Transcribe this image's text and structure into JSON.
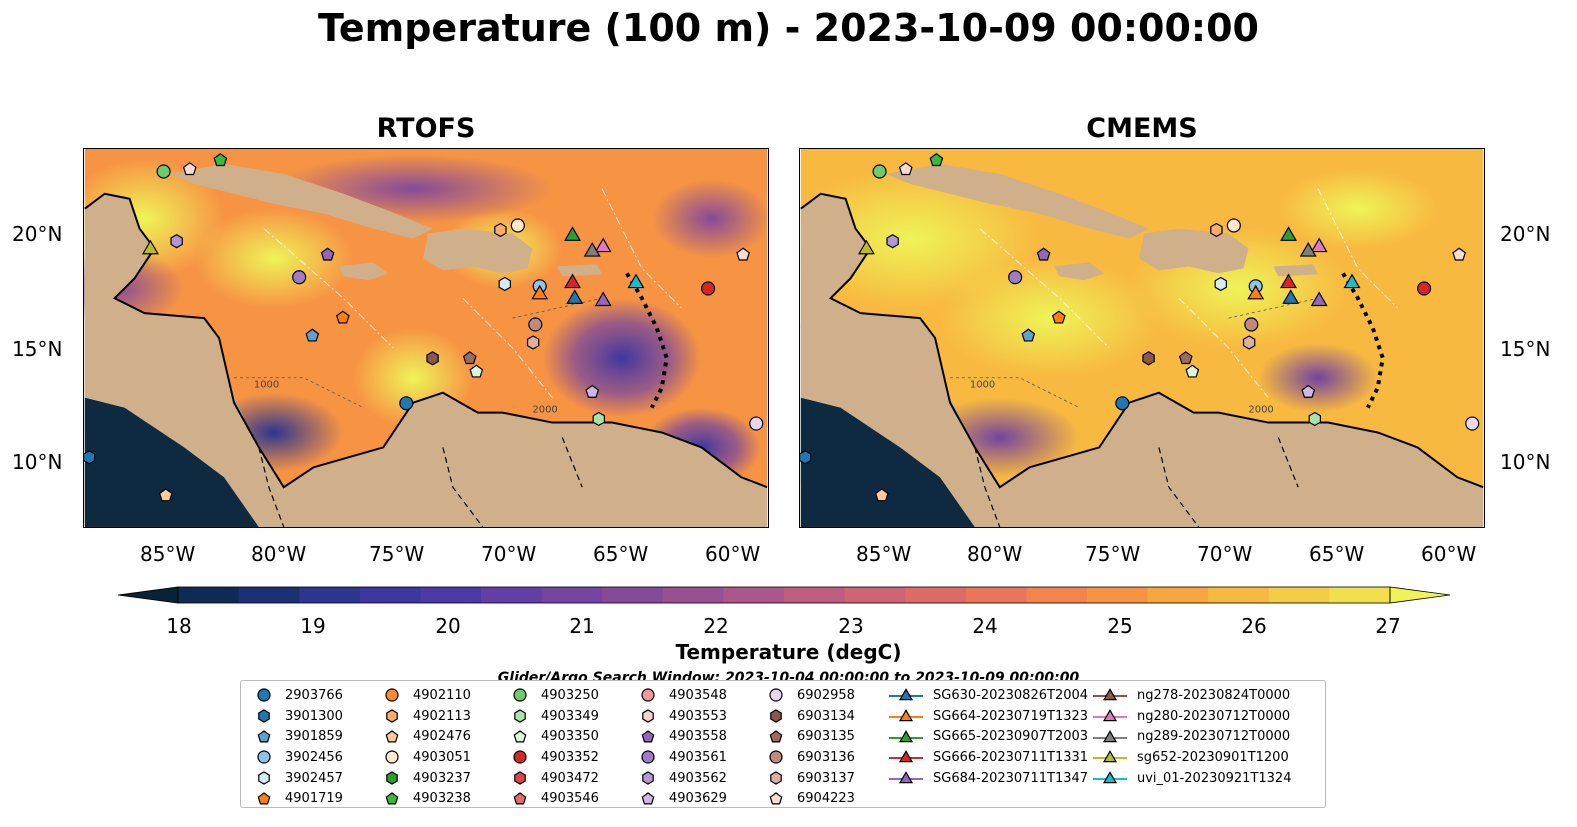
{
  "title": "Temperature (100 m) - 2023-10-09 00:00:00",
  "panels": [
    {
      "name": "RTOFS"
    },
    {
      "name": "CMEMS"
    }
  ],
  "axes": {
    "lon_ticks": [
      "85°W",
      "80°W",
      "75°W",
      "70°W",
      "65°W",
      "60°W"
    ],
    "lat_ticks": [
      "20°N",
      "15°N",
      "10°N"
    ]
  },
  "contour_labels": [
    "1000",
    "2000",
    "1000",
    "2000"
  ],
  "colorbar": {
    "label": "Temperature (degC)",
    "ticks": [
      "18",
      "19",
      "20",
      "21",
      "22",
      "23",
      "24",
      "25",
      "26",
      "27"
    ],
    "min": 18,
    "max": 27,
    "step": 0.5,
    "colors": [
      "#082236",
      "#0f2a55",
      "#1b2f73",
      "#2c3590",
      "#3d379f",
      "#4e3aa6",
      "#613fa5",
      "#7344a0",
      "#854a9a",
      "#985093",
      "#ab578b",
      "#be5d80",
      "#cf6474",
      "#de6c66",
      "#ea7659",
      "#f3844d",
      "#f79444",
      "#f9a640",
      "#f8b940",
      "#f5cc45",
      "#f1df4d",
      "#eef458"
    ]
  },
  "search_window": "Glider/Argo Search Window: 2023-10-04 00:00:00 to 2023-10-09 00:00:00",
  "legend": {
    "columns": [
      [
        {
          "label": "2903766",
          "marker": "circle",
          "color": "#1f77b4"
        },
        {
          "label": "3901300",
          "marker": "hexagon",
          "color": "#1f77b4"
        },
        {
          "label": "3901859",
          "marker": "pentagon",
          "color": "#5fa2ce"
        },
        {
          "label": "3902456",
          "marker": "circle",
          "color": "#8fc3e8"
        },
        {
          "label": "3902457",
          "marker": "hexagon",
          "color": "#d4ecf8"
        },
        {
          "label": "4901719",
          "marker": "pentagon",
          "color": "#ff7f0e"
        }
      ],
      [
        {
          "label": "4902110",
          "marker": "circle",
          "color": "#ff8c26"
        },
        {
          "label": "4902113",
          "marker": "hexagon",
          "color": "#ffad66"
        },
        {
          "label": "4902476",
          "marker": "pentagon",
          "color": "#ffcb99"
        },
        {
          "label": "4903051",
          "marker": "circle",
          "color": "#ffe8cc"
        },
        {
          "label": "4903237",
          "marker": "hexagon",
          "color": "#2ca02c"
        },
        {
          "label": "4903238",
          "marker": "pentagon",
          "color": "#3cb83c"
        }
      ],
      [
        {
          "label": "4903250",
          "marker": "circle",
          "color": "#6ccc6c"
        },
        {
          "label": "4903349",
          "marker": "hexagon",
          "color": "#a8e4a8"
        },
        {
          "label": "4903350",
          "marker": "pentagon",
          "color": "#dcf8dc"
        },
        {
          "label": "4903352",
          "marker": "circle",
          "color": "#d62728"
        },
        {
          "label": "4903472",
          "marker": "hexagon",
          "color": "#e04646"
        },
        {
          "label": "4903546",
          "marker": "pentagon",
          "color": "#ea6a6a"
        }
      ],
      [
        {
          "label": "4903548",
          "marker": "circle",
          "color": "#f29a9a"
        },
        {
          "label": "4903553",
          "marker": "hexagon",
          "color": "#fad0d0"
        },
        {
          "label": "4903558",
          "marker": "pentagon",
          "color": "#9467bd"
        },
        {
          "label": "4903561",
          "marker": "circle",
          "color": "#a07cc6"
        },
        {
          "label": "4903562",
          "marker": "hexagon",
          "color": "#b596d4"
        },
        {
          "label": "4903629",
          "marker": "pentagon",
          "color": "#ceb8e4"
        }
      ],
      [
        {
          "label": "6902958",
          "marker": "circle",
          "color": "#e7d6f4"
        },
        {
          "label": "6903134",
          "marker": "hexagon",
          "color": "#8c564b"
        },
        {
          "label": "6903135",
          "marker": "pentagon",
          "color": "#9e6a5e"
        },
        {
          "label": "6903136",
          "marker": "circle",
          "color": "#c08a7c"
        },
        {
          "label": "6903137",
          "marker": "hexagon",
          "color": "#ddb0a4"
        },
        {
          "label": "6904223",
          "marker": "pentagon",
          "color": "#f6dcd4"
        }
      ],
      [
        {
          "label": "SG630-20230826T2004",
          "marker": "triangle",
          "color": "#1f77b4"
        },
        {
          "label": "SG664-20230719T1323",
          "marker": "triangle",
          "color": "#ff7f0e"
        },
        {
          "label": "SG665-20230907T2003",
          "marker": "triangle",
          "color": "#2ca02c"
        },
        {
          "label": "SG666-20230711T1331",
          "marker": "triangle",
          "color": "#d62728"
        },
        {
          "label": "SG684-20230711T1347",
          "marker": "triangle",
          "color": "#9467bd"
        }
      ],
      [
        {
          "label": "ng278-20230824T0000",
          "marker": "triangle",
          "color": "#8c564b"
        },
        {
          "label": "ng280-20230712T0000",
          "marker": "triangle",
          "color": "#e377c2"
        },
        {
          "label": "ng289-20230712T0000",
          "marker": "triangle",
          "color": "#7f7f7f"
        },
        {
          "label": "sg652-20230901T1200",
          "marker": "triangle",
          "color": "#bcbd22"
        },
        {
          "label": "uvi_01-20230921T1324",
          "marker": "triangle",
          "color": "#17becf"
        }
      ]
    ]
  },
  "platforms": [
    {
      "id": "2903766",
      "lon": -74.5,
      "lat": 12.5
    },
    {
      "id": "3901300",
      "lon": -89.0,
      "lat": 10.1
    },
    {
      "id": "3901859",
      "lon": -78.8,
      "lat": 15.5
    },
    {
      "id": "3902456",
      "lon": -68.4,
      "lat": 17.7
    },
    {
      "id": "3902457",
      "lon": -70.0,
      "lat": 17.8
    },
    {
      "id": "4901719",
      "lon": -77.4,
      "lat": 16.3
    },
    {
      "id": "4902476",
      "lon": -85.5,
      "lat": 8.4
    },
    {
      "id": "4903051",
      "lon": -69.4,
      "lat": 20.4
    },
    {
      "id": "4903238",
      "lon": -83.0,
      "lat": 23.3
    },
    {
      "id": "4903250",
      "lon": -85.6,
      "lat": 22.8
    },
    {
      "id": "4903349",
      "lon": -65.7,
      "lat": 11.8
    },
    {
      "id": "4903350",
      "lon": -71.3,
      "lat": 13.9
    },
    {
      "id": "4903352",
      "lon": -60.7,
      "lat": 17.6
    },
    {
      "id": "4903558",
      "lon": -78.1,
      "lat": 19.1
    },
    {
      "id": "4903561",
      "lon": -79.4,
      "lat": 18.1
    },
    {
      "id": "4903562",
      "lon": -85.0,
      "lat": 19.7
    },
    {
      "id": "4903629",
      "lon": -66.0,
      "lat": 13.0
    },
    {
      "id": "6902958",
      "lon": -58.5,
      "lat": 11.6
    },
    {
      "id": "6903134",
      "lon": -73.3,
      "lat": 14.5
    },
    {
      "id": "6903135",
      "lon": -71.6,
      "lat": 14.5
    },
    {
      "id": "6903136",
      "lon": -68.6,
      "lat": 16.0
    },
    {
      "id": "6903137",
      "lon": -68.7,
      "lat": 15.2
    },
    {
      "id": "6904223",
      "lon": -59.1,
      "lat": 19.1
    },
    {
      "id": "6904223",
      "lon": -84.4,
      "lat": 22.9
    },
    {
      "id": "4902113",
      "lon": -70.2,
      "lat": 20.2
    },
    {
      "id": "SG630-20230826T2004",
      "lon": -66.8,
      "lat": 17.2
    },
    {
      "id": "SG664-20230719T1323",
      "lon": -68.4,
      "lat": 17.4
    },
    {
      "id": "SG665-20230907T2003",
      "lon": -66.9,
      "lat": 20.0
    },
    {
      "id": "SG666-20230711T1331",
      "lon": -66.9,
      "lat": 17.9
    },
    {
      "id": "SG684-20230711T1347",
      "lon": -65.5,
      "lat": 17.1
    },
    {
      "id": "ng280-20230712T0000",
      "lon": -65.5,
      "lat": 19.5
    },
    {
      "id": "ng289-20230712T0000",
      "lon": -66.0,
      "lat": 19.3
    },
    {
      "id": "sg652-20230901T1200",
      "lon": -86.2,
      "lat": 19.4
    },
    {
      "id": "uvi_01-20230921T1324",
      "lon": -64.0,
      "lat": 17.9
    }
  ]
}
